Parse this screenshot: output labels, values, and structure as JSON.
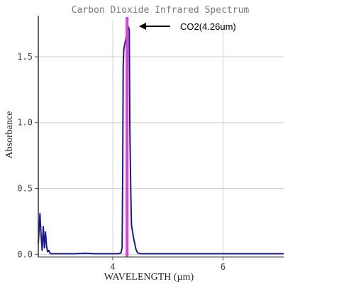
{
  "chart_data": {
    "type": "line",
    "title": "Carbon Dioxide Infrared Spectrum",
    "xlabel": "WAVELENGTH (µm)",
    "ylabel": "Absorbance",
    "xlim": [
      2.65,
      7.1
    ],
    "ylim": [
      -0.02,
      1.78
    ],
    "x_ticks": [
      4,
      6
    ],
    "y_ticks": [
      "0.0",
      "0.5",
      "1.0",
      "1.5"
    ],
    "x_tick_labels": [
      "4",
      "6"
    ],
    "grid": true,
    "series": [
      {
        "color": "#1a1a8c",
        "x": [
          2.65,
          2.68,
          2.7,
          2.72,
          2.74,
          2.76,
          2.78,
          2.8,
          2.82,
          2.84,
          2.86,
          2.88,
          2.9,
          2.95,
          3.0,
          3.1,
          3.3,
          3.5,
          3.7,
          3.9,
          4.0,
          4.1,
          4.15,
          4.17,
          4.18,
          4.19,
          4.2,
          4.21,
          4.22,
          4.23,
          4.24,
          4.25,
          4.26,
          4.27,
          4.28,
          4.29,
          4.3,
          4.31,
          4.32,
          4.33,
          4.34,
          4.36,
          4.38,
          4.4,
          4.42,
          4.44,
          4.46,
          4.5,
          4.6,
          4.8,
          5.0,
          5.5,
          6.0,
          6.5,
          7.0,
          7.1
        ],
        "y": [
          0.08,
          0.31,
          0.15,
          0.03,
          0.21,
          0.05,
          0.17,
          0.06,
          0.02,
          0.03,
          0.01,
          0.005,
          0.005,
          0.005,
          0.005,
          0.005,
          0.005,
          0.008,
          0.005,
          0.005,
          0.005,
          0.005,
          0.01,
          0.05,
          0.6,
          1.42,
          1.55,
          1.58,
          1.6,
          1.62,
          1.64,
          1.66,
          1.69,
          1.72,
          1.73,
          1.72,
          1.7,
          0.95,
          0.7,
          0.42,
          0.22,
          0.17,
          0.12,
          0.08,
          0.04,
          0.02,
          0.01,
          0.005,
          0.005,
          0.005,
          0.005,
          0.005,
          0.005,
          0.005,
          0.005,
          0.005
        ]
      }
    ],
    "marker_line": {
      "x": 4.26,
      "color": "#e040e0"
    },
    "annotation": {
      "text": "CO2(4.26um)",
      "arrow_color": "#000000"
    }
  }
}
